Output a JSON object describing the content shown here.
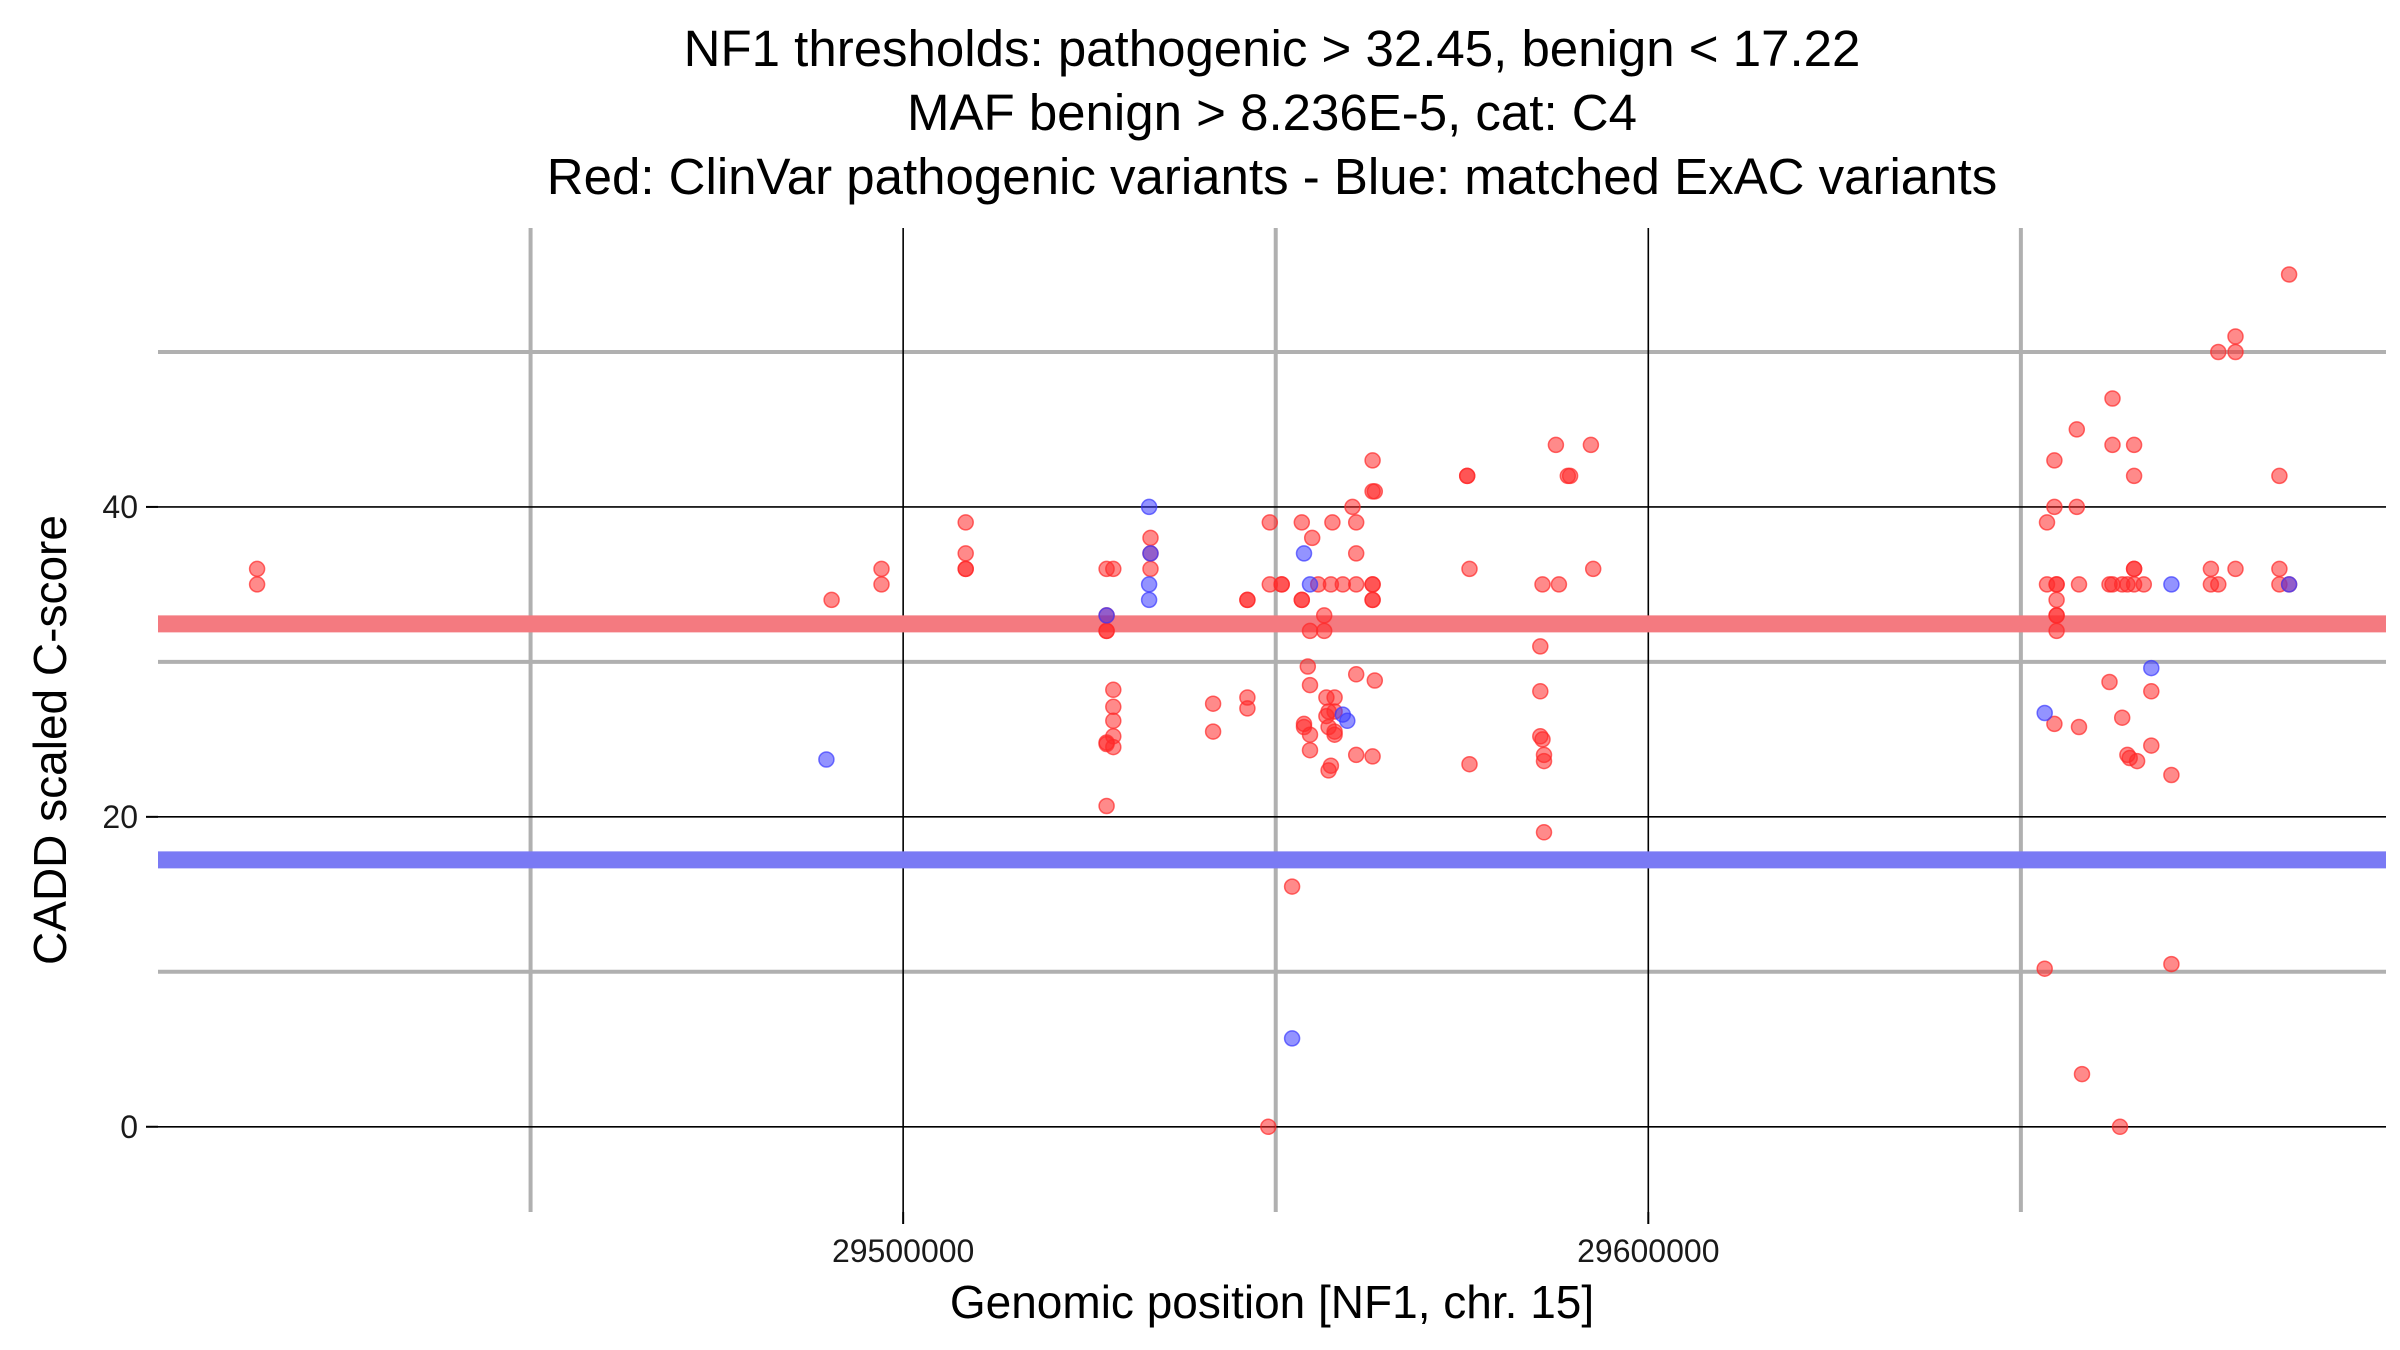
{
  "chart_data": {
    "type": "scatter",
    "title_lines": [
      "NF1 thresholds: pathogenic > 32.45, benign < 17.22",
      "MAF benign > 8.236E-5, cat: C4",
      "Red: ClinVar pathogenic variants - Blue: matched ExAC variants"
    ],
    "xlabel": "Genomic position [NF1, chr. 15]",
    "ylabel": "CADD scaled C-score",
    "xlim": [
      29400000,
      29699000
    ],
    "ylim": [
      -5.5,
      58
    ],
    "x_ticks": [
      29500000,
      29600000
    ],
    "x_tick_labels": [
      "29500000",
      "29600000"
    ],
    "x_minor_grid": [
      29450000,
      29550000,
      29650000
    ],
    "y_ticks": [
      0,
      20,
      40
    ],
    "y_tick_labels": [
      "0",
      "20",
      "40"
    ],
    "y_minor_grid": [
      10,
      30,
      50
    ],
    "grid": true,
    "thresholds": [
      {
        "name": "pathogenic",
        "value": 32.45,
        "color": "#f47a80"
      },
      {
        "name": "benign",
        "value": 17.22,
        "color": "#7a7af4"
      }
    ],
    "series": [
      {
        "color": "#ff2a2a",
        "points": [
          [
            29413300,
            36
          ],
          [
            29413300,
            35
          ],
          [
            29490400,
            34
          ],
          [
            29497100,
            36
          ],
          [
            29497100,
            35
          ],
          [
            29508400,
            39
          ],
          [
            29508400,
            37
          ],
          [
            29508400,
            36
          ],
          [
            29508400,
            36
          ],
          [
            29527300,
            36
          ],
          [
            29528200,
            36
          ],
          [
            29527300,
            33
          ],
          [
            29527300,
            32
          ],
          [
            29527300,
            32
          ],
          [
            29528200,
            28.2
          ],
          [
            29528200,
            27.1
          ],
          [
            29528200,
            26.2
          ],
          [
            29528200,
            25.2
          ],
          [
            29527300,
            24.8
          ],
          [
            29528200,
            24.5
          ],
          [
            29527300,
            24.7
          ],
          [
            29527300,
            20.7
          ],
          [
            29533200,
            38
          ],
          [
            29533200,
            37
          ],
          [
            29533200,
            36
          ],
          [
            29541600,
            27.3
          ],
          [
            29541600,
            25.5
          ],
          [
            29546200,
            27.7
          ],
          [
            29546200,
            27
          ],
          [
            29546200,
            34
          ],
          [
            29546200,
            34
          ],
          [
            29549200,
            39
          ],
          [
            29549200,
            35
          ],
          [
            29550800,
            35
          ],
          [
            29550800,
            35
          ],
          [
            29549000,
            0
          ],
          [
            29552200,
            15.5
          ],
          [
            29553500,
            39
          ],
          [
            29553500,
            34
          ],
          [
            29553500,
            34
          ],
          [
            29553800,
            25.8
          ],
          [
            29553800,
            26
          ],
          [
            29554300,
            29.7
          ],
          [
            29554600,
            28.5
          ],
          [
            29554600,
            25.3
          ],
          [
            29554600,
            24.3
          ],
          [
            29554900,
            38
          ],
          [
            29554600,
            32
          ],
          [
            29555700,
            35
          ],
          [
            29556500,
            33
          ],
          [
            29556500,
            32
          ],
          [
            29556800,
            27.7
          ],
          [
            29556800,
            26.5
          ],
          [
            29557100,
            26.8
          ],
          [
            29557100,
            25.8
          ],
          [
            29557100,
            23
          ],
          [
            29557400,
            23.3
          ],
          [
            29557400,
            35
          ],
          [
            29557600,
            39
          ],
          [
            29557900,
            27.7
          ],
          [
            29557900,
            26.8
          ],
          [
            29557900,
            25.3
          ],
          [
            29557900,
            25.5
          ],
          [
            29559000,
            35
          ],
          [
            29560300,
            40
          ],
          [
            29560800,
            39
          ],
          [
            29560800,
            37
          ],
          [
            29560800,
            35
          ],
          [
            29560800,
            29.2
          ],
          [
            29560800,
            24
          ],
          [
            29563000,
            43
          ],
          [
            29563000,
            41
          ],
          [
            29563300,
            41
          ],
          [
            29563000,
            35
          ],
          [
            29563000,
            35
          ],
          [
            29563000,
            34
          ],
          [
            29563000,
            34
          ],
          [
            29563300,
            28.8
          ],
          [
            29563000,
            23.9
          ],
          [
            29575700,
            42
          ],
          [
            29575700,
            42
          ],
          [
            29576000,
            36
          ],
          [
            29576000,
            23.4
          ],
          [
            29585800,
            35
          ],
          [
            29585500,
            31
          ],
          [
            29585500,
            28.1
          ],
          [
            29585500,
            25.2
          ],
          [
            29585800,
            25
          ],
          [
            29586000,
            24
          ],
          [
            29586000,
            23.6
          ],
          [
            29586000,
            19
          ],
          [
            29587600,
            44
          ],
          [
            29588000,
            35
          ],
          [
            29589200,
            42
          ],
          [
            29589500,
            42
          ],
          [
            29592300,
            44
          ],
          [
            29592600,
            36
          ],
          [
            29653500,
            39
          ],
          [
            29653200,
            10.2
          ],
          [
            29653500,
            35
          ],
          [
            29654500,
            43
          ],
          [
            29654500,
            40
          ],
          [
            29654800,
            35
          ],
          [
            29654800,
            35
          ],
          [
            29654800,
            34
          ],
          [
            29654800,
            33
          ],
          [
            29654800,
            32
          ],
          [
            29654800,
            33
          ],
          [
            29654500,
            26
          ],
          [
            29657500,
            45
          ],
          [
            29657500,
            40
          ],
          [
            29657800,
            35
          ],
          [
            29657800,
            25.8
          ],
          [
            29658200,
            3.4
          ],
          [
            29661900,
            35
          ],
          [
            29661900,
            28.7
          ],
          [
            29662300,
            47
          ],
          [
            29662300,
            44
          ],
          [
            29662300,
            35
          ],
          [
            29663300,
            0
          ],
          [
            29663600,
            26.4
          ],
          [
            29663600,
            35
          ],
          [
            29664300,
            35
          ],
          [
            29664300,
            24
          ],
          [
            29664600,
            23.8
          ],
          [
            29665200,
            44
          ],
          [
            29665200,
            42
          ],
          [
            29665200,
            36
          ],
          [
            29665200,
            36
          ],
          [
            29665200,
            35
          ],
          [
            29665600,
            23.6
          ],
          [
            29666500,
            35
          ],
          [
            29667500,
            28.1
          ],
          [
            29667500,
            24.6
          ],
          [
            29670200,
            22.7
          ],
          [
            29670200,
            10.5
          ],
          [
            29675500,
            35
          ],
          [
            29675500,
            36
          ],
          [
            29676500,
            50
          ],
          [
            29676500,
            35
          ],
          [
            29678800,
            51
          ],
          [
            29678800,
            50
          ],
          [
            29678800,
            36
          ],
          [
            29684700,
            42
          ],
          [
            29684700,
            36
          ],
          [
            29684700,
            35
          ],
          [
            29686000,
            55
          ],
          [
            29686000,
            35
          ]
        ]
      },
      {
        "color": "#3a3aff",
        "points": [
          [
            29489700,
            23.7
          ],
          [
            29527300,
            33
          ],
          [
            29533000,
            40
          ],
          [
            29533000,
            35
          ],
          [
            29533000,
            34
          ],
          [
            29533200,
            37
          ],
          [
            29552200,
            5.7
          ],
          [
            29553800,
            37
          ],
          [
            29554600,
            35
          ],
          [
            29559000,
            26.6
          ],
          [
            29559600,
            26.2
          ],
          [
            29653200,
            26.7
          ],
          [
            29667500,
            29.6
          ],
          [
            29670200,
            35
          ],
          [
            29686000,
            35
          ]
        ]
      }
    ]
  }
}
